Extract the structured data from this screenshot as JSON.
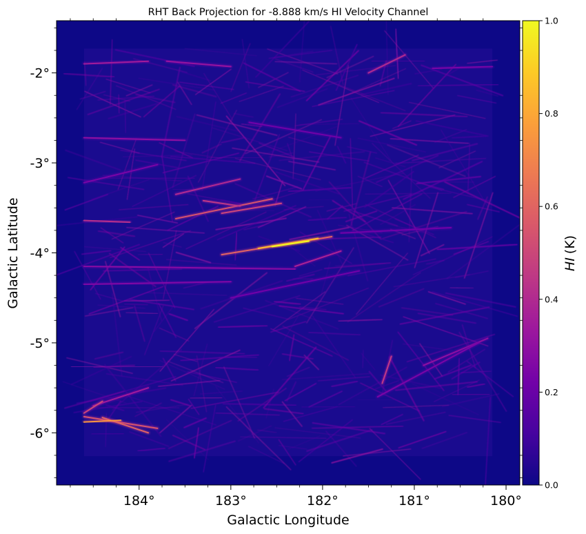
{
  "chart_data": {
    "type": "heatmap",
    "title": "RHT Back Projection for -8.888 km/s HI Velocity Channel",
    "xlabel": "Galactic Longitude",
    "ylabel": "Galactic Latitude",
    "xlim": [
      184.9,
      179.85
    ],
    "ylim": [
      -6.58,
      -1.42
    ],
    "x_ticks": [
      {
        "value": 184,
        "label": "184°"
      },
      {
        "value": 183,
        "label": "183°"
      },
      {
        "value": 182,
        "label": "182°"
      },
      {
        "value": 181,
        "label": "181°"
      },
      {
        "value": 180,
        "label": "180°"
      }
    ],
    "y_ticks": [
      {
        "value": -2,
        "label": "-2°"
      },
      {
        "value": -3,
        "label": "-3°"
      },
      {
        "value": -4,
        "label": "-4°"
      },
      {
        "value": -5,
        "label": "-5°"
      },
      {
        "value": -6,
        "label": "-6°"
      }
    ],
    "data_region": {
      "l_min": 180.15,
      "l_max": 184.6,
      "b_min": -6.26,
      "b_max": -1.73
    },
    "colorbar": {
      "label_italic": "HI",
      "label_unit": "(K)",
      "range": [
        0,
        1
      ],
      "ticks": [
        "0.0",
        "0.2",
        "0.4",
        "0.6",
        "0.8",
        "1.0"
      ],
      "colormap": "plasma",
      "stops": [
        "#0d0887",
        "#46039f",
        "#7201a8",
        "#9c179e",
        "#bd3786",
        "#d8576b",
        "#ed7953",
        "#fb9f3a",
        "#fdca26",
        "#f0f921"
      ]
    },
    "background_color": "#0d0887",
    "filaments": [
      {
        "l1": 183.6,
        "b1": -3.62,
        "l2": 182.55,
        "b2": -3.4,
        "value": 0.55
      },
      {
        "l1": 183.1,
        "b1": -3.56,
        "l2": 182.45,
        "b2": -3.45,
        "value": 0.5
      },
      {
        "l1": 183.3,
        "b1": -3.42,
        "l2": 182.9,
        "b2": -3.48,
        "value": 0.45
      },
      {
        "l1": 183.6,
        "b1": -3.35,
        "l2": 182.9,
        "b2": -3.18,
        "value": 0.4
      },
      {
        "l1": 183.1,
        "b1": -4.02,
        "l2": 181.9,
        "b2": -3.82,
        "value": 0.6
      },
      {
        "l1": 182.7,
        "b1": -3.95,
        "l2": 182.05,
        "b2": -3.84,
        "value": 0.85
      },
      {
        "l1": 182.55,
        "b1": -3.93,
        "l2": 182.15,
        "b2": -3.87,
        "value": 1.0
      },
      {
        "l1": 182.3,
        "b1": -4.15,
        "l2": 181.8,
        "b2": -3.98,
        "value": 0.38
      },
      {
        "l1": 184.6,
        "b1": -3.64,
        "l2": 184.1,
        "b2": -3.66,
        "value": 0.42
      },
      {
        "l1": 184.6,
        "b1": -5.82,
        "l2": 183.8,
        "b2": -5.95,
        "value": 0.55
      },
      {
        "l1": 184.4,
        "b1": -5.83,
        "l2": 183.9,
        "b2": -6.0,
        "value": 0.6
      },
      {
        "l1": 184.6,
        "b1": -5.88,
        "l2": 184.2,
        "b2": -5.86,
        "value": 0.75
      },
      {
        "l1": 184.5,
        "b1": -5.7,
        "l2": 183.9,
        "b2": -5.5,
        "value": 0.35
      },
      {
        "l1": 184.6,
        "b1": -5.78,
        "l2": 184.4,
        "b2": -5.65,
        "value": 0.5
      },
      {
        "l1": 181.25,
        "b1": -5.15,
        "l2": 181.35,
        "b2": -5.45,
        "value": 0.45
      },
      {
        "l1": 181.5,
        "b1": -2.0,
        "l2": 181.1,
        "b2": -1.8,
        "value": 0.4
      },
      {
        "l1": 184.6,
        "b1": -1.9,
        "l2": 183.9,
        "b2": -1.87,
        "value": 0.35
      },
      {
        "l1": 183.7,
        "b1": -1.87,
        "l2": 183.0,
        "b2": -1.93,
        "value": 0.32
      },
      {
        "l1": 184.6,
        "b1": -2.72,
        "l2": 183.5,
        "b2": -2.75,
        "value": 0.3
      },
      {
        "l1": 184.6,
        "b1": -4.15,
        "l2": 182.3,
        "b2": -4.18,
        "value": 0.28
      },
      {
        "l1": 184.6,
        "b1": -4.35,
        "l2": 183.0,
        "b2": -4.32,
        "value": 0.26
      },
      {
        "l1": 183.0,
        "b1": -4.5,
        "l2": 181.6,
        "b2": -4.2,
        "value": 0.22
      },
      {
        "l1": 181.8,
        "b1": -3.78,
        "l2": 180.6,
        "b2": -3.72,
        "value": 0.22
      },
      {
        "l1": 180.9,
        "b1": -5.25,
        "l2": 180.2,
        "b2": -4.95,
        "value": 0.3
      },
      {
        "l1": 181.4,
        "b1": -5.6,
        "l2": 180.3,
        "b2": -5.0,
        "value": 0.24
      },
      {
        "l1": 182.8,
        "b1": -2.55,
        "l2": 181.8,
        "b2": -2.72,
        "value": 0.22
      },
      {
        "l1": 184.6,
        "b1": -3.22,
        "l2": 183.8,
        "b2": -3.02,
        "value": 0.24
      },
      {
        "l1": 180.8,
        "b1": -1.95,
        "l2": 180.15,
        "b2": -1.93,
        "value": 0.24
      }
    ]
  }
}
